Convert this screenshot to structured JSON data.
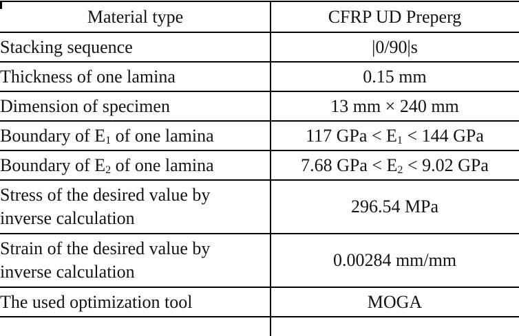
{
  "table": {
    "header": {
      "label": "Material type",
      "value": "CFRP UD Preperg"
    },
    "rows": [
      {
        "label": [
          {
            "text": "Stacking sequence"
          }
        ],
        "value": [
          {
            "text": "|0/90|s"
          }
        ]
      },
      {
        "label": [
          {
            "text": "Thickness of one lamina"
          }
        ],
        "value": [
          {
            "text": "0.15 mm"
          }
        ]
      },
      {
        "label": [
          {
            "text": "Dimension of specimen"
          }
        ],
        "value": [
          {
            "text": "13 mm × 240 mm"
          }
        ]
      },
      {
        "label": [
          {
            "text": "Boundary of E"
          },
          {
            "text": "1",
            "sub": true
          },
          {
            "text": " of one lamina"
          }
        ],
        "value": [
          {
            "text": "117 GPa < E"
          },
          {
            "text": "1",
            "sub": true
          },
          {
            "text": " < 144 GPa"
          }
        ]
      },
      {
        "label": [
          {
            "text": "Boundary of E"
          },
          {
            "text": "2",
            "sub": true
          },
          {
            "text": " of one lamina"
          }
        ],
        "value": [
          {
            "text": "7.68 GPa < E"
          },
          {
            "text": "2",
            "sub": true
          },
          {
            "text": " < 9.02 GPa"
          }
        ]
      },
      {
        "label": [
          {
            "text": "Stress of the desired value by"
          },
          {
            "br": true
          },
          {
            "text": "inverse calculation"
          }
        ],
        "value": [
          {
            "text": "296.54 MPa"
          }
        ],
        "tall": true
      },
      {
        "label": [
          {
            "text": "Strain of the desired value by"
          },
          {
            "br": true
          },
          {
            "text": "inverse calculation"
          }
        ],
        "value": [
          {
            "text": "0.00284 mm/mm"
          }
        ],
        "tall": true
      },
      {
        "label": [
          {
            "text": "The used optimization tool"
          }
        ],
        "value": [
          {
            "text": "MOGA"
          }
        ]
      }
    ]
  },
  "colors": {
    "text": "#131313",
    "rule": "#000000",
    "background": "#ffffff"
  }
}
